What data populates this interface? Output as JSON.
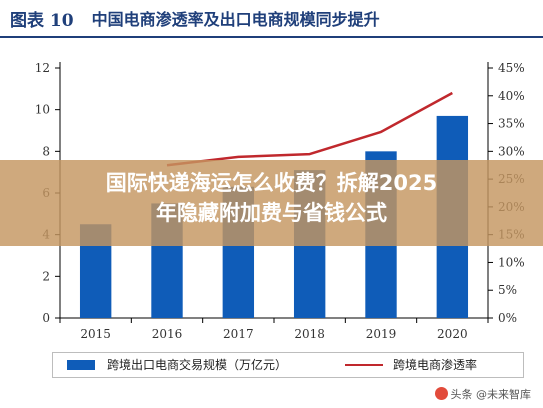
{
  "header": {
    "figure_label": "图表 10",
    "title": "中国电商渗透率及出口电商规模同步提升"
  },
  "chart_data": {
    "type": "bar",
    "categories": [
      "2015",
      "2016",
      "2017",
      "2018",
      "2019",
      "2020"
    ],
    "series": [
      {
        "name": "跨境出口电商交易规模（万亿元）",
        "type": "bar",
        "axis": "left",
        "color": "#0f5cb8",
        "values": [
          4.5,
          5.5,
          6.3,
          7.1,
          8.0,
          9.7
        ]
      },
      {
        "name": "跨境电商渗透率",
        "type": "line",
        "axis": "right",
        "color": "#c0282d",
        "values": [
          23,
          27.5,
          29,
          29.5,
          33.5,
          40.5
        ]
      }
    ],
    "ylim": [
      0,
      12
    ],
    "yticks": [
      "0",
      "2",
      "4",
      "6",
      "8",
      "10",
      "12"
    ],
    "y2lim": [
      0,
      45
    ],
    "y2ticks": [
      "0%",
      "5%",
      "10%",
      "15%",
      "20%",
      "25%",
      "30%",
      "35%",
      "40%",
      "45%"
    ],
    "grid": false,
    "legend_position": "bottom"
  },
  "overlay": {
    "line1": "国际快递海运怎么收费？拆解2025",
    "line2": "年隐藏附加费与省钱公式"
  },
  "watermark": {
    "text": "头条 @未来智库"
  }
}
